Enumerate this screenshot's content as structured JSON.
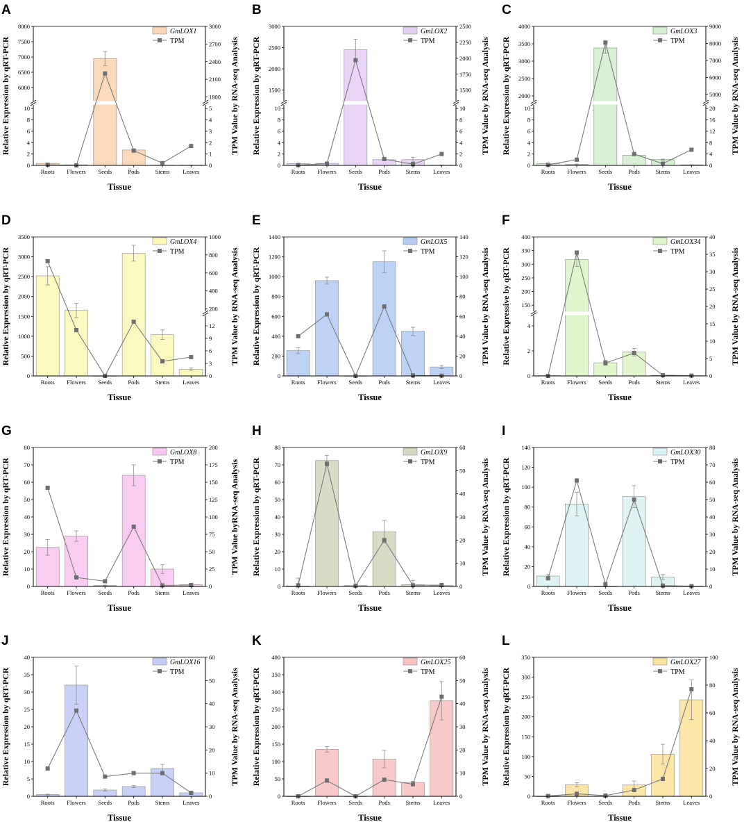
{
  "figure": {
    "categories": [
      "Roots",
      "Flowers",
      "Seeds",
      "Pods",
      "Stems",
      "Leaves"
    ],
    "xlabel": "Tissue",
    "tpm_legend": "TPM"
  },
  "chart_data": [
    {
      "id": "A",
      "type": "bar",
      "gene": "GmLOX1",
      "color": "#fbd6b5",
      "ylabel": "Relative Expression by qRT-PCR",
      "y2label": "TPM Value by RNA-seq Analysis",
      "left_axis": {
        "low": [
          0,
          11
        ],
        "high": [
          5500,
          8000
        ],
        "low_ticks": [
          0,
          2,
          4,
          6,
          8,
          10
        ],
        "high_ticks": [
          6000,
          6500,
          7000,
          7500,
          8000
        ]
      },
      "right_axis": {
        "low": [
          0,
          5.5
        ],
        "high": [
          1700,
          3000
        ],
        "low_ticks": [
          0,
          1,
          2,
          3,
          4,
          5
        ],
        "high_ticks": [
          1800,
          2100,
          2400,
          2700,
          3000
        ]
      },
      "values": [
        0.35,
        0.1,
        6950,
        2.7,
        0.05,
        0.05
      ],
      "errors": [
        0.05,
        0.03,
        230,
        0.1,
        0.02,
        0.02
      ],
      "tpm": [
        0.05,
        0.0,
        2200,
        1.3,
        0.2,
        1.7
      ]
    },
    {
      "id": "B",
      "type": "bar",
      "gene": "GmLOX2",
      "color": "#e6d0f5",
      "ylabel": "Relative Expression by qRT-PCR",
      "y2label": "TPM Value by RNA-seq Analysis",
      "left_axis": {
        "low": [
          0,
          11
        ],
        "high": [
          1200,
          3000
        ],
        "low_ticks": [
          0,
          2,
          4,
          6,
          8,
          10
        ],
        "high_ticks": [
          1500,
          2000,
          2500,
          3000
        ]
      },
      "right_axis": {
        "low": [
          0,
          11
        ],
        "high": [
          1300,
          2500
        ],
        "low_ticks": [
          0,
          2,
          4,
          6,
          8,
          10
        ],
        "high_ticks": [
          1500,
          1750,
          2000,
          2250,
          2500
        ]
      },
      "values": [
        0.3,
        0.35,
        2450,
        1.0,
        1.0,
        0.05
      ],
      "errors": [
        0.05,
        0.05,
        250,
        0.1,
        0.4,
        0.02
      ],
      "tpm": [
        0.05,
        0.3,
        1970,
        1.1,
        0.2,
        2.0
      ]
    },
    {
      "id": "C",
      "type": "bar",
      "gene": "GmLOX3",
      "color": "#d4efd0",
      "ylabel": "Relative Expression by qRT-PCR",
      "y2label": "TPM Value by RNA-seq Analysis",
      "left_axis": {
        "low": [
          0,
          11
        ],
        "high": [
          1800,
          4000
        ],
        "low_ticks": [
          0,
          2,
          4,
          6,
          8,
          10
        ],
        "high_ticks": [
          2000,
          2500,
          3000,
          3500,
          4000
        ]
      },
      "right_axis": {
        "low": [
          0,
          22
        ],
        "high": [
          4500,
          9000
        ],
        "low_ticks": [
          0,
          4,
          8,
          12,
          16,
          20
        ],
        "high_ticks": [
          5000,
          6000,
          7000,
          8000,
          9000
        ]
      },
      "values": [
        0.3,
        0.2,
        3380,
        1.8,
        1.0,
        0.1
      ],
      "errors": [
        0.05,
        0.05,
        150,
        0.1,
        0.1,
        0.02
      ],
      "tpm": [
        0.2,
        2.0,
        8050,
        4.0,
        0.6,
        5.5
      ]
    },
    {
      "id": "D",
      "type": "bar",
      "gene": "GmLOX4",
      "color": "#fbf8b8",
      "ylabel": "Relative Expression by qRT-PCR",
      "y2label": "TPM Value by RNA-seq Analysis",
      "left_axis": {
        "low": [
          0,
          3500
        ],
        "ticks": [
          0,
          500,
          1000,
          1500,
          2000,
          2500,
          3000,
          3500
        ]
      },
      "right_axis": {
        "low": [
          0,
          15
        ],
        "high": [
          150,
          1000
        ],
        "low_ticks": [
          0,
          3,
          6,
          9,
          12
        ],
        "high_ticks": [
          200,
          400,
          600,
          800,
          1000
        ]
      },
      "values": [
        2520,
        1650,
        0,
        3090,
        1040,
        170
      ],
      "errors": [
        230,
        180,
        0,
        200,
        120,
        30
      ],
      "tpm": [
        730,
        11,
        0,
        13,
        3.5,
        4.5
      ]
    },
    {
      "id": "E",
      "type": "bar",
      "gene": "GmLOX5",
      "color": "#b6cdf3",
      "ylabel": "Relative Expression by qRT-PCR",
      "y2label": "TPM Value by RNA-seq Analysis",
      "left_axis": {
        "low": [
          0,
          1400
        ],
        "ticks": [
          0,
          200,
          400,
          600,
          800,
          1000,
          1200,
          1400
        ]
      },
      "right_axis": {
        "low": [
          0,
          140
        ],
        "ticks": [
          0,
          20,
          40,
          60,
          80,
          100,
          120,
          140
        ]
      },
      "values": [
        255,
        960,
        0,
        1150,
        450,
        90
      ],
      "errors": [
        30,
        35,
        0,
        110,
        40,
        15
      ],
      "tpm": [
        40,
        62,
        0,
        70,
        0.5,
        0.3
      ]
    },
    {
      "id": "F",
      "type": "bar",
      "gene": "GmLOX34",
      "color": "#def5c8",
      "ylabel": "Relative Expressive by qRT-PCR",
      "y2label": "TPM Value by RNA-seq Analysis",
      "left_axis": {
        "low": [
          0,
          5
        ],
        "high": [
          120,
          400
        ],
        "low_ticks": [
          0,
          2,
          4
        ],
        "high_ticks": [
          150,
          200,
          250,
          300,
          350,
          400
        ]
      },
      "right_axis": {
        "low": [
          0,
          40
        ],
        "ticks": [
          0,
          5,
          10,
          15,
          20,
          25,
          30,
          35,
          40
        ]
      },
      "values": [
        0.02,
        317,
        1.05,
        1.9,
        0.05,
        0.02
      ],
      "errors": [
        0.01,
        25,
        0.2,
        0.3,
        0.02,
        0.01
      ],
      "tpm": [
        0,
        35.5,
        3.7,
        6.6,
        0.2,
        0.1
      ]
    },
    {
      "id": "G",
      "type": "bar",
      "gene": "GmLOX8",
      "color": "#f8c8f0",
      "ylabel": "Relative Expression by qRT-PCR",
      "y2label": "TPM Value byRNA-seq Analysis",
      "left_axis": {
        "low": [
          0,
          80
        ],
        "ticks": [
          0,
          10,
          20,
          30,
          40,
          50,
          60,
          70,
          80
        ]
      },
      "right_axis": {
        "low": [
          0,
          200
        ],
        "ticks": [
          0,
          25,
          50,
          75,
          100,
          125,
          150,
          175,
          200
        ]
      },
      "values": [
        22.5,
        29,
        0.6,
        64,
        10,
        1
      ],
      "errors": [
        4.5,
        3,
        0.2,
        6,
        2.5,
        0.3
      ],
      "tpm": [
        142,
        13,
        7.5,
        86,
        1.5,
        2
      ]
    },
    {
      "id": "H",
      "type": "bar",
      "gene": "GmLOX9",
      "color": "#d3d8c0",
      "ylabel": "Relative Expression by qRT-PCR",
      "y2label": "TPM Value by RNA-seq Analysis",
      "left_axis": {
        "low": [
          0,
          80
        ],
        "ticks": [
          0,
          10,
          20,
          30,
          40,
          50,
          60,
          70,
          80
        ]
      },
      "right_axis": {
        "low": [
          0,
          60
        ],
        "ticks": [
          0,
          10,
          20,
          30,
          40,
          50,
          60
        ]
      },
      "values": [
        0.3,
        72.5,
        0.5,
        31.5,
        1,
        0.6
      ],
      "errors": [
        4.5,
        3,
        0.2,
        6.5,
        2.5,
        0.3
      ],
      "tpm": [
        0.5,
        53,
        0.3,
        20,
        0.5,
        0.6
      ]
    },
    {
      "id": "I",
      "type": "bar",
      "gene": "GmLOX30",
      "color": "#dbf1f3",
      "ylabel": "Relative Expression by qRT-PCR",
      "y2label": "TPM Value by RNA-seq Analysis",
      "left_axis": {
        "low": [
          0,
          140
        ],
        "ticks": [
          0,
          20,
          40,
          60,
          80,
          100,
          120,
          140
        ]
      },
      "right_axis": {
        "low": [
          0,
          80
        ],
        "ticks": [
          0,
          10,
          20,
          30,
          40,
          50,
          60,
          70,
          80
        ]
      },
      "values": [
        10.5,
        83,
        0,
        90.5,
        9.5,
        0.5
      ],
      "errors": [
        1.5,
        12,
        0,
        11,
        2.5,
        0.2
      ],
      "tpm": [
        4.7,
        61,
        1.3,
        50,
        0.5,
        0.2
      ]
    },
    {
      "id": "J",
      "type": "bar",
      "gene": "GmLOX16",
      "color": "#c3ccf6",
      "ylabel": "Relative Expression by qRT-PCR",
      "y2label": "TPM Value by RNA-seq Analysis",
      "left_axis": {
        "low": [
          0,
          40
        ],
        "ticks": [
          0,
          5,
          10,
          15,
          20,
          25,
          30,
          35,
          40
        ]
      },
      "right_axis": {
        "low": [
          0,
          60
        ],
        "ticks": [
          0,
          10,
          20,
          30,
          40,
          50,
          60
        ]
      },
      "values": [
        0.5,
        32,
        1.8,
        2.8,
        8,
        1
      ],
      "errors": [
        0.1,
        5.5,
        0.3,
        0.3,
        1.2,
        0.2
      ],
      "tpm": [
        12,
        37,
        8.5,
        10,
        10,
        1.5
      ]
    },
    {
      "id": "K",
      "type": "bar",
      "gene": "GmLOX25",
      "color": "#f7c3c3",
      "ylabel": "Relative Expression by qRT-PCR",
      "y2label": "TPM Value by RNA-seq Analysis",
      "left_axis": {
        "low": [
          0,
          400
        ],
        "ticks": [
          0,
          50,
          100,
          150,
          200,
          250,
          300,
          350,
          400
        ]
      },
      "right_axis": {
        "low": [
          0,
          60
        ],
        "ticks": [
          0,
          10,
          20,
          30,
          40,
          50,
          60
        ]
      },
      "values": [
        0,
        135,
        0,
        107,
        40,
        275
      ],
      "errors": [
        0,
        8,
        0,
        25,
        3,
        55
      ],
      "tpm": [
        0,
        6.8,
        0,
        7.2,
        5.2,
        43
      ]
    },
    {
      "id": "L",
      "type": "bar",
      "gene": "GmLOX27",
      "color": "#fbe39e",
      "ylabel": "Relative Expression by qRT-PCR",
      "y2label": "TPM Value by RNA-seq Analysis",
      "left_axis": {
        "low": [
          0,
          350
        ],
        "ticks": [
          0,
          50,
          100,
          150,
          200,
          250,
          300,
          350
        ]
      },
      "right_axis": {
        "low": [
          0,
          100
        ],
        "ticks": [
          0,
          20,
          40,
          60,
          80,
          100
        ]
      },
      "values": [
        0,
        29,
        0.5,
        28.5,
        106,
        243
      ],
      "errors": [
        0,
        5,
        0.2,
        10,
        25,
        50
      ],
      "tpm": [
        0.2,
        1.8,
        0.5,
        4.5,
        12.5,
        77
      ]
    }
  ]
}
